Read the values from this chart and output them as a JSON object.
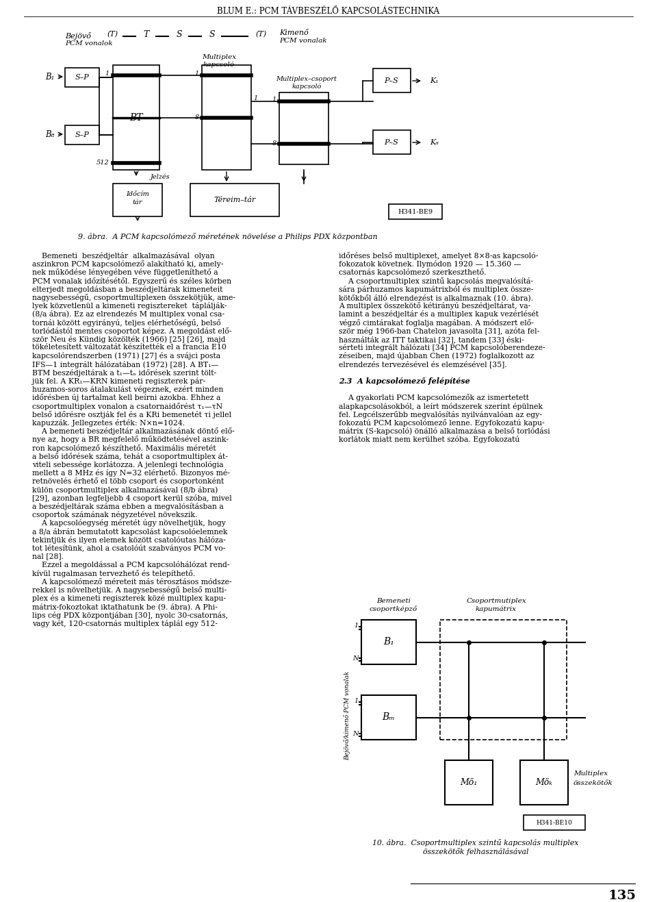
{
  "page_title": "BLUM E.: PCM TÁVBESZÉLŐ KAPCSOLÁSTECHNIKA",
  "fig_caption_top": "9. ábra.  A PCM kapcsolómező méretének növelése a Philips PDX központban",
  "fig_caption_bottom_1": "10. ábra.  Csoportmultiplex szintű kapcsolás multiplex",
  "fig_caption_bottom_2": "összekötők felhasználásával",
  "page_number": "135",
  "stamp_top": "H341-BE9",
  "stamp_bottom": "H341-BE10",
  "body_left_lines": [
    "    Bemeneti  beszédjeltár  alkalmazásával  olyan",
    "aszinkron PCM kapcsolómező alakítható ki, amely-",
    "nek működése lényegében véve függetleníthető a",
    "PCM vonalak időzítésétől. Egyszerű és széles körben",
    "elterjedt megoldásban a beszédjeltárak kimeneteit",
    "nagysebességű, csoportmultiplexen összekötjük, ame-",
    "lyek közvetlenül a kimeneti regisztereket  táplálják-",
    "(8/a ábra). Ez az elrendezés M multiplex vonal csa-",
    "tornái között egyirányú, teljes elérhetőségű, belső",
    "torlódástól mentes csoportot képez. A megoldást elő-",
    "ször Neu és Kündig közölték (1966) [25] [26], majd",
    "tökéletesített változatát készítették el a francia E10",
    "kapcsolórendszerben (1971) [27] és a svájci posta",
    "IFS—1 integrált hálózatában (1972) [28]. A BT₁—",
    "BTM beszédjeltárak a t₁—tₙ időrések szerint tölt-",
    "jük fel. A KR₁—KRN kimeneti regiszterek pár-",
    "huzamos-soros átalakulást végeznek, ezért minden",
    "időrésben új tartalmat kell beírni azokba. Ehhez a",
    "csoportmultiplex vonalon a csatornaidőrést τ₁—τN",
    "belső időrésre osztják fel és a KRi bemenetét τi jellel",
    "kapuzzák. Jellegzetes érték: N×n=1024.",
    "    A bemeneti beszédjeltár alkalmazásának döntő elő-",
    "nye az, hogy a BR megfelelő működtetésével aszink-",
    "ron kapcsolómező készíthető. Maximális méretét",
    "a belső időrések száma, tehát a csoportmultiplex át-",
    "viteli sebessége korlátozza. A jelenlegi technológia",
    "mellett a 8 MHz és így N=32 elérhető. Bizonyos mé-",
    "retnövelés érhető el több csoport és csoportonként",
    "külön csoportmultiplex alkalmazásával (8/b ábra)",
    "[29], azonban legfeljebb 4 csoport kerül szóba, mivel",
    "a beszédjeltárak száma ebben a megvalósításban a",
    "csoportok számának négyzetével növekszik.",
    "    A kapcsolóegység méretét úgy növelhetjük, hogy",
    "a 8/a ábrán bemutatott kapcsolást kapcsolóelemnek",
    "tekintjük és ilyen elemek között csatolóutas hálóza-",
    "tot létesítünk, ahol a csatolóút szabványos PCM vo-",
    "nal [28].",
    "    Ezzel a megoldással a PCM kapcsolóhálózat rend-",
    "kívül rugalmasan tervezhető és telepíthető.",
    "    A kapcsolómező méreteit más térosztásos módsze-",
    "rekkel is növelhetjük. A nagysebességű belső multi-",
    "plex és a kimeneti regiszterek közé multiplex kapu-",
    "mátrix-fokoztokat iktathatunk be (9. ábra). A Phi-",
    "lips cég PDX központjában [30], nyolc 30-csatornás,",
    "vagy két, 120-csatornás multiplex táplál egy 512-"
  ],
  "body_right_lines": [
    "időréses belső multiplexet, amelyet 8×8-as kapcsoló-",
    "fokozatok követnek. Ilymódon 1920 — 15.360 —",
    "csatornás kapcsolómező szerkeszthető.",
    "    A csoportmultiplex szintű kapcsolás megvalósítá-",
    "sára párhuzamos kapumátrixból és multiplex össze-",
    "kötőkből álló elrendezést is alkalmaznak (10. ábra).",
    "A multiplex összekötő kétirányú beszédjeltárat, va-",
    "lamint a beszédjeltár és a multiplex kapuk vezérlését",
    "végző cimtárakat foglalja magában. A módszert elő-",
    "ször még 1966-ban Chatelon javasolta [31], azóta fel-",
    "használták az ITT taktikai [32], tandem [33] éski-",
    "sérteti integrált hálózati [34] PCM kapcsolóberendeze-",
    "zéseiben, majd újabban Chen (1972) foglalkozott az",
    "elrendezés tervezésével és elemzésével [35].",
    "",
    "2.3  A kapcsolómező felépítése",
    "",
    "    A gyakorlati PCM kapcsolómezők az ismertetett",
    "alapkapcsolásokból, a leírt módszerek szerint épülnek",
    "fel. Legcélszerűbb megvalósítás nyilvánvalóan az egy-",
    "fokozatú PCM kapcsolómező lenne. Egyfokozatú kapu-",
    "mátrix (S-kapcsoló) önálló alkalmazása a belső torlódási",
    "korlátok miatt nem kerülhet szóba. Egyfokozatú"
  ]
}
